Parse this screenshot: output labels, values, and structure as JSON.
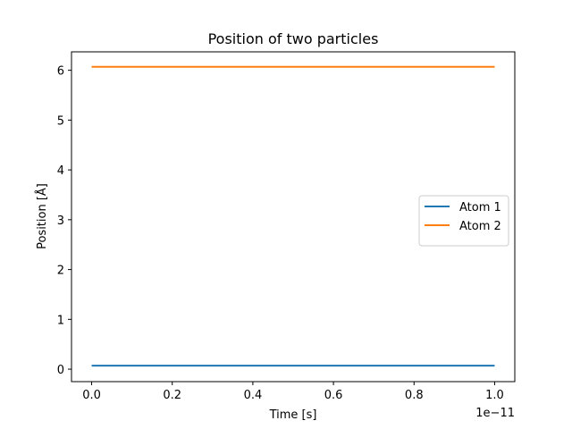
{
  "chart_data": {
    "type": "line",
    "title": "Position of two particles",
    "xlabel": "Time [s]",
    "ylabel": "Position [Å]",
    "x_offset_text": "1e−11",
    "xlim": [
      -0.05,
      1.05
    ],
    "ylim": [
      -0.25,
      6.37
    ],
    "xticks": [
      0.0,
      0.2,
      0.4,
      0.6,
      0.8,
      1.0
    ],
    "xtick_labels": [
      "0.0",
      "0.2",
      "0.4",
      "0.6",
      "0.8",
      "1.0"
    ],
    "yticks": [
      0,
      1,
      2,
      3,
      4,
      5,
      6
    ],
    "ytick_labels": [
      "0",
      "1",
      "2",
      "3",
      "4",
      "5",
      "6"
    ],
    "grid": false,
    "legend_position": "center-right",
    "series": [
      {
        "name": "Atom 1",
        "color": "#1f77b4",
        "x": [
          0.0,
          1.0
        ],
        "y": [
          0.07,
          0.07
        ]
      },
      {
        "name": "Atom 2",
        "color": "#ff7f0e",
        "x": [
          0.0,
          1.0
        ],
        "y": [
          6.07,
          6.07
        ]
      }
    ]
  }
}
